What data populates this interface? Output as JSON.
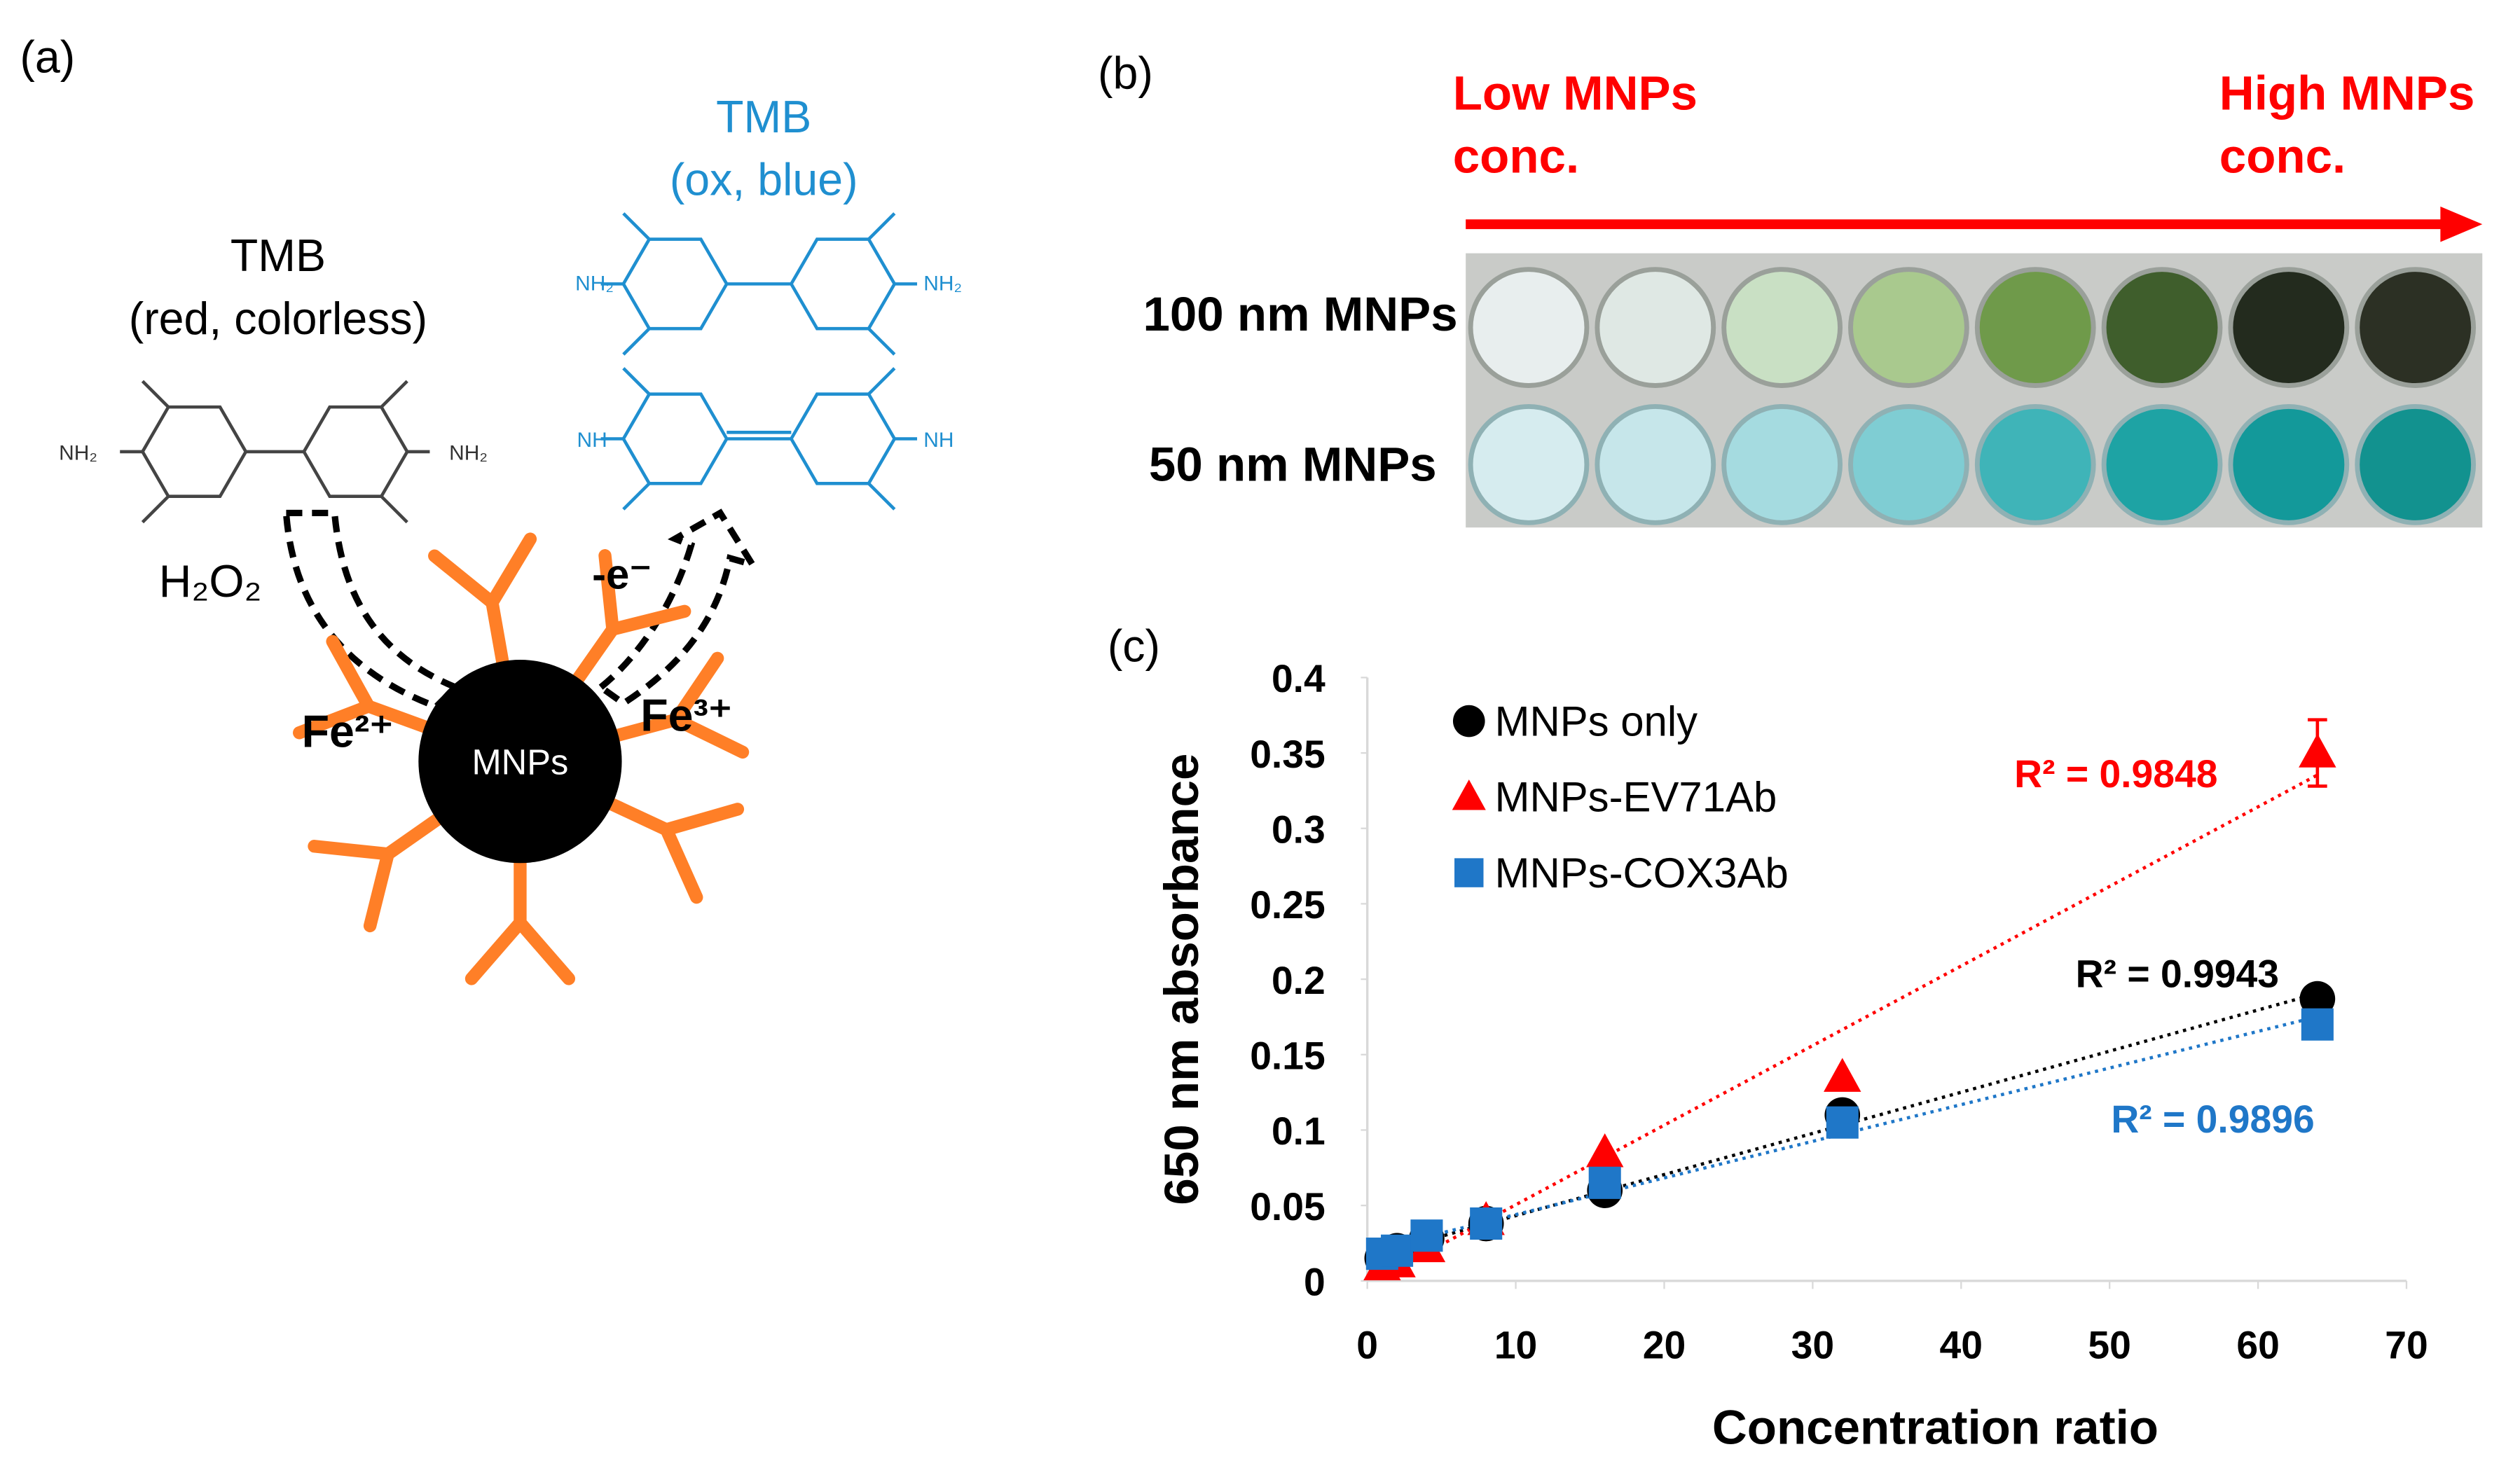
{
  "panel_a": {
    "label": "(a)",
    "tmb_red_name": "TMB",
    "tmb_red_state": "(red, colorless)",
    "tmb_ox_name": "TMB",
    "tmb_ox_state": "(ox, blue)",
    "nh2_red_left": "NH₂",
    "nh2_red_right": "NH₂",
    "nh2_ox_left": "NH₂",
    "nh2_ox_right": "NH₂",
    "nh_ox_left": "NH",
    "nh_ox_right": "NH",
    "h2o2": "H₂O₂",
    "electron": "-e⁻",
    "fe2": "Fe²⁺",
    "fe3": "Fe³⁺",
    "particle": "MNPs"
  },
  "panel_b": {
    "label": "(b)",
    "low_line1": "Low MNPs",
    "low_line2": "conc.",
    "high_line1": "High MNPs",
    "high_line2": "conc.",
    "row1": "100 nm MNPs",
    "row2": "50 nm MNPs"
  },
  "panel_c": {
    "label": "(c)"
  },
  "chart_data": {
    "type": "scatter",
    "xlabel": "Concentration ratio",
    "ylabel": "650 nm absorbance",
    "x": [
      1,
      2,
      4,
      8,
      16,
      32,
      64
    ],
    "series": [
      {
        "name": "MNPs only",
        "color": "#000000",
        "marker": "circle",
        "r2_label": "R² = 0.9943",
        "values": [
          0.015,
          0.02,
          0.028,
          0.038,
          0.06,
          0.11,
          0.187
        ]
      },
      {
        "name": "MNPs-EV71Ab",
        "color": "#ff0000",
        "marker": "triangle",
        "r2_label": "R² = 0.9848",
        "values": [
          0.01,
          0.012,
          0.022,
          0.04,
          0.085,
          0.135,
          0.35
        ],
        "errors": [
          null,
          null,
          null,
          null,
          null,
          null,
          0.022
        ]
      },
      {
        "name": "MNPs-COX3Ab",
        "color": "#1f77c8",
        "marker": "square",
        "r2_label": "R² = 0.9896",
        "values": [
          0.018,
          0.02,
          0.03,
          0.038,
          0.065,
          0.105,
          0.17
        ]
      }
    ],
    "trendline": "linear",
    "xlim": [
      0,
      70
    ],
    "xticks": [
      0,
      10,
      20,
      30,
      40,
      50,
      60,
      70
    ],
    "ylim": [
      0,
      0.4
    ],
    "yticks": [
      0,
      0.05,
      0.1,
      0.15,
      0.2,
      0.25,
      0.3,
      0.35,
      0.4
    ],
    "grid": false,
    "legend": "upper left"
  }
}
